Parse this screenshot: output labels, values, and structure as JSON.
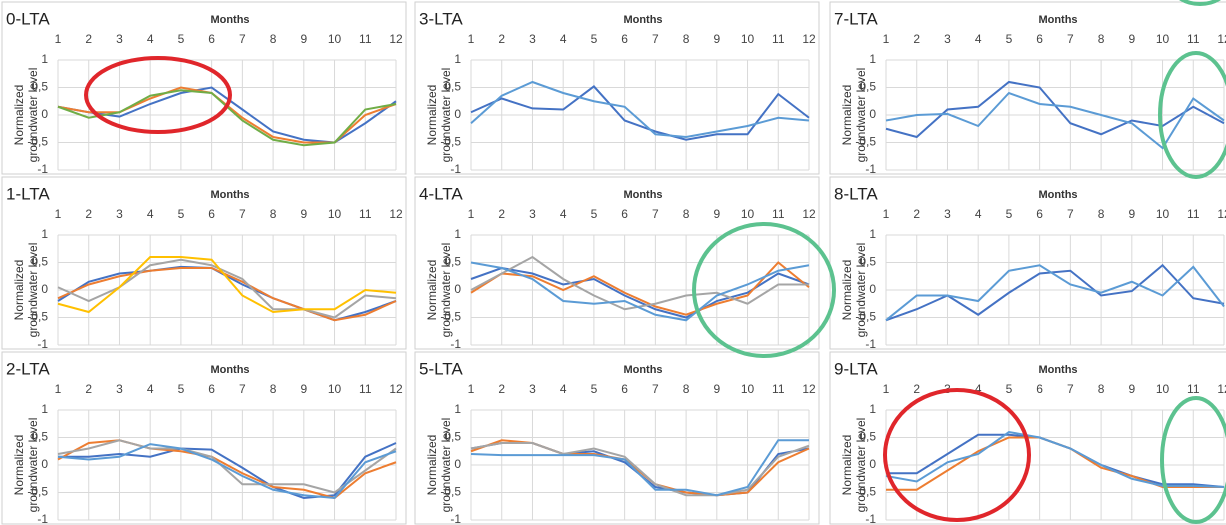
{
  "chart_data": [
    {
      "type": "line",
      "title": "0-LTA",
      "x_label": "Months",
      "y_label": [
        "Normalized",
        "groundwater level"
      ],
      "categories": [
        "1",
        "2",
        "3",
        "4",
        "5",
        "6",
        "7",
        "8",
        "9",
        "10",
        "11",
        "12"
      ],
      "ylim": [
        -1,
        1
      ],
      "yticks": [
        -1,
        {
          "value": -0.5,
          "label": "-0,5"
        },
        0,
        {
          "value": 0.5,
          "label": "0,5"
        },
        1
      ],
      "grid": true,
      "series": [
        {
          "color": "#4472c4",
          "values": [
            0.15,
            0.05,
            -0.03,
            0.2,
            0.4,
            0.5,
            0.1,
            -0.3,
            -0.45,
            -0.5,
            -0.15,
            0.25
          ]
        },
        {
          "color": "#ed7d31",
          "values": [
            0.15,
            0.05,
            0.05,
            0.3,
            0.5,
            0.4,
            -0.05,
            -0.4,
            -0.5,
            -0.5,
            0,
            0.2
          ]
        },
        {
          "color": "#70ad47",
          "values": [
            0.15,
            -0.05,
            0.05,
            0.35,
            0.45,
            0.4,
            -0.1,
            -0.45,
            -0.55,
            -0.5,
            0.1,
            0.2
          ]
        }
      ]
    },
    {
      "type": "line",
      "title": "1-LTA",
      "x_label": "Months",
      "y_label": [
        "Normalized",
        "groundwater level"
      ],
      "categories": [
        "1",
        "2",
        "3",
        "4",
        "5",
        "6",
        "7",
        "8",
        "9",
        "10",
        "11",
        "12"
      ],
      "ylim": [
        -1,
        1
      ],
      "yticks": [
        -1,
        {
          "value": -0.5,
          "label": "-0,5"
        },
        0,
        {
          "value": 0.5,
          "label": "0,5"
        },
        1
      ],
      "grid": true,
      "series": [
        {
          "color": "#4472c4",
          "values": [
            -0.2,
            0.15,
            0.3,
            0.35,
            0.42,
            0.4,
            0.1,
            -0.15,
            -0.35,
            -0.55,
            -0.4,
            -0.2
          ]
        },
        {
          "color": "#ed7d31",
          "values": [
            -0.15,
            0.1,
            0.25,
            0.35,
            0.4,
            0.4,
            0.15,
            -0.15,
            -0.35,
            -0.55,
            -0.45,
            -0.2
          ]
        },
        {
          "color": "#a5a5a5",
          "values": [
            0.05,
            -0.2,
            0.05,
            0.45,
            0.55,
            0.45,
            0.2,
            -0.35,
            -0.35,
            -0.5,
            -0.1,
            -0.15
          ]
        },
        {
          "color": "#ffc000",
          "values": [
            -0.25,
            -0.4,
            0.05,
            0.6,
            0.6,
            0.55,
            -0.1,
            -0.4,
            -0.35,
            -0.35,
            0,
            -0.05
          ]
        }
      ]
    },
    {
      "type": "line",
      "title": "2-LTA",
      "x_label": "Months",
      "y_label": [
        "Normalized",
        "groundwater level"
      ],
      "categories": [
        "1",
        "2",
        "3",
        "4",
        "5",
        "6",
        "7",
        "8",
        "9",
        "10",
        "11",
        "12"
      ],
      "ylim": [
        -1,
        1
      ],
      "yticks": [
        -1,
        {
          "value": -0.5,
          "label": "-0,5"
        },
        0,
        {
          "value": 0.5,
          "label": "0,5"
        },
        1
      ],
      "grid": true,
      "series": [
        {
          "color": "#4472c4",
          "values": [
            0.15,
            0.15,
            0.2,
            0.15,
            0.3,
            0.28,
            -0.05,
            -0.4,
            -0.6,
            -0.55,
            0.15,
            0.4
          ]
        },
        {
          "color": "#ed7d31",
          "values": [
            0.1,
            0.4,
            0.45,
            0.3,
            0.25,
            0.15,
            -0.15,
            -0.4,
            -0.45,
            -0.6,
            -0.15,
            0.05
          ]
        },
        {
          "color": "#a5a5a5",
          "values": [
            0.2,
            0.3,
            0.45,
            0.3,
            0.3,
            0.15,
            -0.35,
            -0.35,
            -0.35,
            -0.5,
            -0.1,
            0.3
          ]
        },
        {
          "color": "#5b9bd5",
          "values": [
            0.15,
            0.1,
            0.15,
            0.38,
            0.3,
            0.1,
            -0.2,
            -0.45,
            -0.55,
            -0.6,
            0.05,
            0.25
          ]
        }
      ]
    },
    {
      "type": "line",
      "title": "3-LTA",
      "x_label": "Months",
      "y_label": [
        "Normalized",
        "groundwater level"
      ],
      "categories": [
        "1",
        "2",
        "3",
        "4",
        "5",
        "6",
        "7",
        "8",
        "9",
        "10",
        "11",
        "12"
      ],
      "ylim": [
        -1,
        1
      ],
      "yticks": [
        -1,
        {
          "value": -0.5,
          "label": "-0,5"
        },
        0,
        {
          "value": 0.5,
          "label": "0,5"
        },
        1
      ],
      "grid": true,
      "series": [
        {
          "color": "#4472c4",
          "values": [
            0.05,
            0.3,
            0.12,
            0.1,
            0.52,
            -0.1,
            -0.3,
            -0.45,
            -0.35,
            -0.35,
            0.38,
            -0.05
          ]
        },
        {
          "color": "#5b9bd5",
          "values": [
            -0.15,
            0.35,
            0.6,
            0.4,
            0.25,
            0.15,
            -0.35,
            -0.4,
            -0.3,
            -0.2,
            -0.05,
            -0.1
          ]
        }
      ]
    },
    {
      "type": "line",
      "title": "4-LTA",
      "x_label": "Months",
      "y_label": [
        "Normalized",
        "groundwater level"
      ],
      "categories": [
        "1",
        "2",
        "3",
        "4",
        "5",
        "6",
        "7",
        "8",
        "9",
        "10",
        "11",
        "12"
      ],
      "ylim": [
        -1,
        1
      ],
      "yticks": [
        -1,
        {
          "value": -0.5,
          "label": "-0,5"
        },
        0,
        {
          "value": 0.5,
          "label": "0,5"
        },
        1
      ],
      "grid": true,
      "series": [
        {
          "color": "#4472c4",
          "values": [
            0.2,
            0.4,
            0.3,
            0.1,
            0.2,
            -0.1,
            -0.35,
            -0.5,
            -0.2,
            -0.05,
            0.3,
            0.1
          ]
        },
        {
          "color": "#ed7d31",
          "values": [
            -0.05,
            0.3,
            0.25,
            0,
            0.25,
            -0.05,
            -0.3,
            -0.45,
            -0.25,
            -0.1,
            0.5,
            0.05
          ]
        },
        {
          "color": "#a5a5a5",
          "values": [
            0,
            0.3,
            0.6,
            0.2,
            -0.1,
            -0.35,
            -0.25,
            -0.1,
            -0.05,
            -0.25,
            0.1,
            0.1
          ]
        },
        {
          "color": "#5b9bd5",
          "values": [
            0.5,
            0.4,
            0.2,
            -0.2,
            -0.25,
            -0.2,
            -0.45,
            -0.55,
            -0.1,
            0.1,
            0.35,
            0.45
          ]
        }
      ]
    },
    {
      "type": "line",
      "title": "5-LTA",
      "x_label": "Months",
      "y_label": [
        "Normalized",
        "groundwater level"
      ],
      "categories": [
        "1",
        "2",
        "3",
        "4",
        "5",
        "6",
        "7",
        "8",
        "9",
        "10",
        "11",
        "12"
      ],
      "ylim": [
        -1,
        1
      ],
      "yticks": [
        -1,
        {
          "value": -0.5,
          "label": "-0,5"
        },
        0,
        {
          "value": 0.5,
          "label": "0,5"
        },
        1
      ],
      "grid": true,
      "series": [
        {
          "color": "#4472c4",
          "values": [
            0.3,
            0.4,
            0.4,
            0.2,
            0.25,
            0.05,
            -0.4,
            -0.5,
            -0.55,
            -0.5,
            0.2,
            0.3
          ]
        },
        {
          "color": "#ed7d31",
          "values": [
            0.25,
            0.45,
            0.4,
            0.2,
            0.2,
            0.1,
            -0.35,
            -0.5,
            -0.55,
            -0.5,
            0.05,
            0.3
          ]
        },
        {
          "color": "#a5a5a5",
          "values": [
            0.3,
            0.4,
            0.4,
            0.2,
            0.3,
            0.15,
            -0.35,
            -0.55,
            -0.55,
            -0.45,
            0.15,
            0.35
          ]
        },
        {
          "color": "#5b9bd5",
          "values": [
            0.2,
            0.18,
            0.18,
            0.18,
            0.18,
            0.1,
            -0.45,
            -0.45,
            -0.55,
            -0.4,
            0.45,
            0.45
          ]
        }
      ]
    },
    {
      "type": "line",
      "title": "7-LTA",
      "x_label": "Months",
      "y_label": [
        "Normalized",
        "groundwater level"
      ],
      "categories": [
        "1",
        "2",
        "3",
        "4",
        "5",
        "6",
        "7",
        "8",
        "9",
        "10",
        "11",
        "12"
      ],
      "ylim": [
        -1,
        1
      ],
      "yticks": [
        -1,
        {
          "value": -0.5,
          "label": "-0,5"
        },
        0,
        {
          "value": 0.5,
          "label": "0,5"
        },
        1
      ],
      "grid": true,
      "series": [
        {
          "color": "#4472c4",
          "values": [
            -0.25,
            -0.4,
            0.1,
            0.15,
            0.6,
            0.5,
            -0.15,
            -0.35,
            -0.1,
            -0.2,
            0.15,
            -0.15
          ]
        },
        {
          "color": "#5b9bd5",
          "values": [
            -0.1,
            0,
            0.02,
            -0.2,
            0.4,
            0.2,
            0.15,
            0,
            -0.15,
            -0.6,
            0.3,
            -0.1
          ]
        }
      ]
    },
    {
      "type": "line",
      "title": "8-LTA",
      "x_label": "Months",
      "y_label": [
        "Normalized",
        "groundwater level"
      ],
      "categories": [
        "1",
        "2",
        "3",
        "4",
        "5",
        "6",
        "7",
        "8",
        "9",
        "10",
        "11",
        "12"
      ],
      "ylim": [
        -1,
        1
      ],
      "yticks": [
        -1,
        {
          "value": -0.5,
          "label": "-0,5"
        },
        0,
        {
          "value": 0.5,
          "label": "0,5"
        },
        1
      ],
      "grid": true,
      "series": [
        {
          "color": "#4472c4",
          "values": [
            -0.55,
            -0.35,
            -0.1,
            -0.45,
            -0.05,
            0.3,
            0.35,
            -0.1,
            -0.02,
            0.45,
            -0.15,
            -0.25
          ]
        },
        {
          "color": "#5b9bd5",
          "values": [
            -0.55,
            -0.1,
            -0.1,
            -0.2,
            0.35,
            0.45,
            0.1,
            -0.05,
            0.15,
            -0.1,
            0.42,
            -0.3
          ]
        }
      ]
    },
    {
      "type": "line",
      "title": "9-LTA",
      "x_label": "Months",
      "y_label": [
        "Normalized",
        "groundwater level"
      ],
      "categories": [
        "1",
        "2",
        "3",
        "4",
        "5",
        "6",
        "7",
        "8",
        "9",
        "10",
        "11",
        "12"
      ],
      "ylim": [
        -1,
        1
      ],
      "yticks": [
        -1,
        {
          "value": -0.5,
          "label": "-0,5"
        },
        0,
        {
          "value": 0.5,
          "label": "0,5"
        },
        1
      ],
      "grid": true,
      "series": [
        {
          "color": "#4472c4",
          "values": [
            -0.15,
            -0.15,
            0.2,
            0.55,
            0.55,
            0.5,
            0.3,
            0,
            -0.2,
            -0.35,
            -0.35,
            -0.4
          ]
        },
        {
          "color": "#ed7d31",
          "values": [
            -0.45,
            -0.45,
            -0.1,
            0.25,
            0.5,
            0.5,
            0.3,
            -0.05,
            -0.2,
            -0.4,
            -0.4,
            -0.4
          ]
        },
        {
          "color": "#5b9bd5",
          "values": [
            -0.2,
            -0.3,
            0.05,
            0.2,
            0.6,
            0.5,
            0.3,
            0,
            -0.25,
            -0.38,
            -0.38,
            -0.4
          ]
        }
      ]
    }
  ]
}
